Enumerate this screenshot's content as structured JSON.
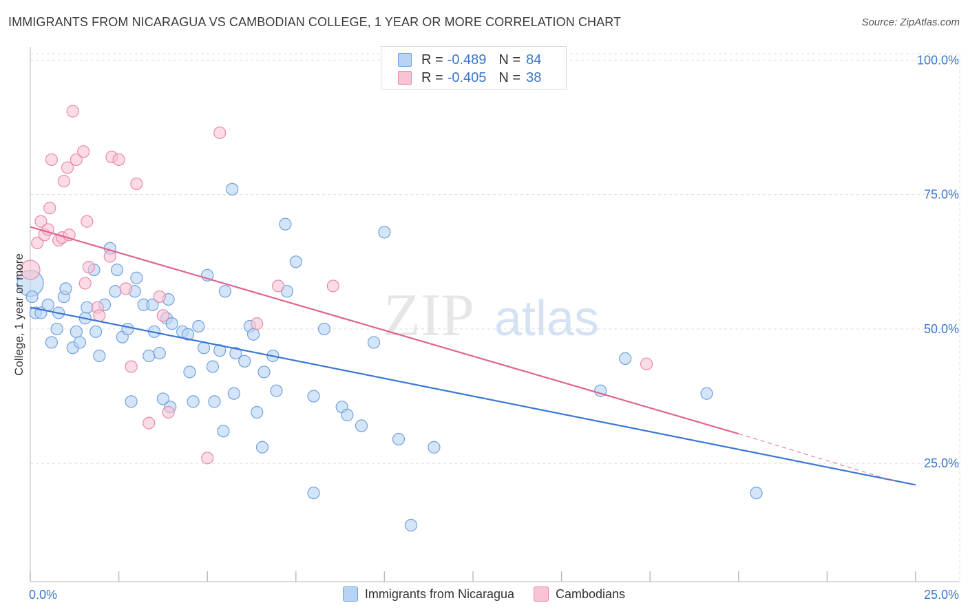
{
  "title": "IMMIGRANTS FROM NICARAGUA VS CAMBODIAN COLLEGE, 1 YEAR OR MORE CORRELATION CHART",
  "source": "Source: ZipAtlas.com",
  "watermark": {
    "zip": "ZIP",
    "atlas": "atlas"
  },
  "legend": {
    "rows": [
      {
        "r_label": "R =",
        "r_value": "-0.489",
        "n_label": "N =",
        "n_value": "84",
        "fill": "#b9d3f3",
        "stroke": "#6fa0de"
      },
      {
        "r_label": "R =",
        "r_value": "-0.405",
        "n_label": "N =",
        "n_value": "38",
        "fill": "#f8c3d4",
        "stroke": "#e88aaa"
      }
    ]
  },
  "chart_data": {
    "type": "scatter",
    "title": "IMMIGRANTS FROM NICARAGUA VS CAMBODIAN COLLEGE, 1 YEAR OR MORE CORRELATION CHART",
    "xlabel": "",
    "ylabel": "College, 1 year or more",
    "xlim": [
      0,
      25
    ],
    "ylim": [
      3,
      103
    ],
    "x_tick_labels": [
      "0.0%",
      "25.0%"
    ],
    "y_ticks": [
      25,
      50,
      75,
      100
    ],
    "y_tick_labels": [
      "25.0%",
      "50.0%",
      "75.0%",
      "100.0%"
    ],
    "grid": true,
    "legend_position": "bottom",
    "colors": {
      "blue": "#3a76d6",
      "pink": "#e0648f",
      "tick_label": "#3a76c9"
    },
    "series": [
      {
        "name": "Immigrants from Nicaragua",
        "color": "#6fa0de",
        "fill": "#b9d3f3",
        "points": [
          [
            0.0,
            58.5
          ],
          [
            0.05,
            56
          ],
          [
            0.15,
            53
          ],
          [
            0.3,
            53
          ],
          [
            0.5,
            54.5
          ],
          [
            0.6,
            47.5
          ],
          [
            0.75,
            50
          ],
          [
            0.8,
            53
          ],
          [
            0.95,
            56
          ],
          [
            1.0,
            57.5
          ],
          [
            1.2,
            46.5
          ],
          [
            1.3,
            49.5
          ],
          [
            1.4,
            47.5
          ],
          [
            1.6,
            54
          ],
          [
            1.55,
            52
          ],
          [
            1.8,
            61
          ],
          [
            1.85,
            49.5
          ],
          [
            1.95,
            45
          ],
          [
            2.1,
            54.5
          ],
          [
            2.25,
            65
          ],
          [
            2.4,
            57
          ],
          [
            2.45,
            61
          ],
          [
            2.6,
            48.5
          ],
          [
            2.75,
            50
          ],
          [
            2.85,
            36.5
          ],
          [
            2.95,
            57
          ],
          [
            3.0,
            59.5
          ],
          [
            3.2,
            54.5
          ],
          [
            3.35,
            45
          ],
          [
            3.45,
            54.5
          ],
          [
            3.5,
            49.5
          ],
          [
            3.65,
            45.5
          ],
          [
            3.75,
            37
          ],
          [
            3.85,
            52
          ],
          [
            3.9,
            55.5
          ],
          [
            3.95,
            35.5
          ],
          [
            4.0,
            51
          ],
          [
            4.3,
            49.5
          ],
          [
            4.45,
            49
          ],
          [
            4.5,
            42
          ],
          [
            4.6,
            36.5
          ],
          [
            4.75,
            50.5
          ],
          [
            4.9,
            46.5
          ],
          [
            5.0,
            60
          ],
          [
            5.15,
            43
          ],
          [
            5.2,
            36.5
          ],
          [
            5.35,
            46
          ],
          [
            5.45,
            31
          ],
          [
            5.5,
            57
          ],
          [
            5.7,
            76
          ],
          [
            5.75,
            38
          ],
          [
            5.8,
            45.5
          ],
          [
            6.05,
            44
          ],
          [
            6.2,
            50.5
          ],
          [
            6.3,
            49
          ],
          [
            6.4,
            34.5
          ],
          [
            6.55,
            28
          ],
          [
            6.6,
            42
          ],
          [
            6.85,
            45
          ],
          [
            6.95,
            38.5
          ],
          [
            7.2,
            69.5
          ],
          [
            7.25,
            57
          ],
          [
            7.5,
            62.5
          ],
          [
            8.0,
            37.5
          ],
          [
            8.3,
            50
          ],
          [
            8.8,
            35.5
          ],
          [
            8.95,
            34
          ],
          [
            9.35,
            32
          ],
          [
            9.7,
            47.5
          ],
          [
            10.0,
            68
          ],
          [
            10.4,
            29.5
          ],
          [
            10.75,
            13.5
          ],
          [
            11.4,
            28
          ],
          [
            8.0,
            19.5
          ],
          [
            16.1,
            38.5
          ],
          [
            16.8,
            44.5
          ],
          [
            19.1,
            38
          ],
          [
            20.5,
            19.5
          ]
        ],
        "trend": {
          "x": [
            0.0,
            25.0
          ],
          "y": [
            54.0,
            21.0
          ]
        }
      },
      {
        "name": "Cambodians",
        "color": "#e88aaa",
        "fill": "#f8c3d4",
        "points": [
          [
            0.0,
            61
          ],
          [
            0.2,
            66
          ],
          [
            0.3,
            70
          ],
          [
            0.4,
            67.5
          ],
          [
            0.5,
            68.5
          ],
          [
            0.55,
            72.5
          ],
          [
            0.6,
            81.5
          ],
          [
            0.8,
            66.5
          ],
          [
            0.9,
            67
          ],
          [
            0.95,
            77.5
          ],
          [
            1.05,
            80
          ],
          [
            1.1,
            67.5
          ],
          [
            1.2,
            90.5
          ],
          [
            1.3,
            81.5
          ],
          [
            1.5,
            83
          ],
          [
            1.55,
            58.5
          ],
          [
            1.6,
            70
          ],
          [
            1.65,
            61.5
          ],
          [
            1.9,
            54
          ],
          [
            1.95,
            52.5
          ],
          [
            2.25,
            63.5
          ],
          [
            2.3,
            82
          ],
          [
            2.5,
            81.5
          ],
          [
            2.7,
            57.5
          ],
          [
            2.85,
            43
          ],
          [
            3.0,
            77
          ],
          [
            3.35,
            32.5
          ],
          [
            3.65,
            56
          ],
          [
            3.75,
            52.5
          ],
          [
            3.9,
            34.5
          ],
          [
            5.0,
            26
          ],
          [
            5.35,
            86.5
          ],
          [
            6.4,
            51
          ],
          [
            7.0,
            58
          ],
          [
            8.55,
            58
          ],
          [
            17.4,
            43.5
          ]
        ],
        "trend": {
          "x": [
            0.0,
            20.0
          ],
          "y": [
            69.0,
            30.5
          ]
        },
        "trend_extension": {
          "x": [
            20.0,
            24.5
          ],
          "y": [
            30.5,
            21.5
          ]
        }
      }
    ]
  }
}
